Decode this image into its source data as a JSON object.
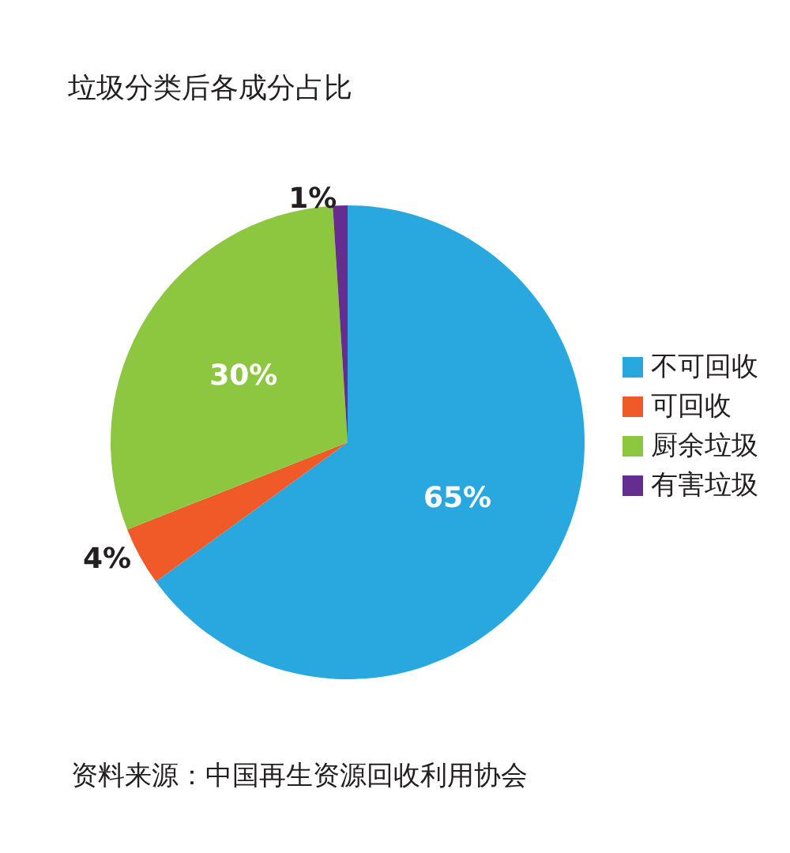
{
  "chart_data": {
    "type": "pie",
    "title": "垃圾分类后各成分占比",
    "categories": [
      "不可回收",
      "可回收",
      "厨余垃圾",
      "有害垃圾"
    ],
    "values": [
      65,
      4,
      30,
      1
    ],
    "colors": [
      "#29a8e0",
      "#f05a28",
      "#8dc63f",
      "#662d91"
    ],
    "value_labels": [
      "65%",
      "4%",
      "30%",
      "1%"
    ],
    "legend": "right",
    "annotations": [
      "资料来源：中国再生资源回收利用协会"
    ]
  }
}
